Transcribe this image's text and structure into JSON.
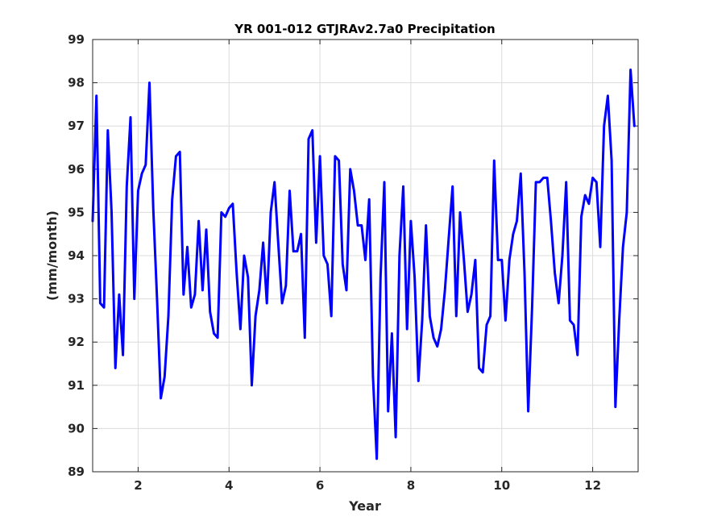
{
  "chart_data": {
    "type": "line",
    "title": "YR 001-012 GTJRAv2.7a0 Precipitation",
    "xlabel": "Year",
    "ylabel": "(mm/month)",
    "xlim": [
      1,
      13
    ],
    "ylim": [
      89,
      99
    ],
    "xticks": [
      2,
      4,
      6,
      8,
      10,
      12
    ],
    "yticks": [
      89,
      90,
      91,
      92,
      93,
      94,
      95,
      96,
      97,
      98,
      99
    ],
    "grid": true,
    "line_color": "#0000ff",
    "series": [
      {
        "x": [
          1.0,
          1.083,
          1.167,
          1.25,
          1.333,
          1.417,
          1.5,
          1.583,
          1.667,
          1.75,
          1.833,
          1.917,
          2.0,
          2.083,
          2.167,
          2.25,
          2.333,
          2.417,
          2.5,
          2.583,
          2.667,
          2.75,
          2.833,
          2.917,
          3.0,
          3.083,
          3.167,
          3.25,
          3.333,
          3.417,
          3.5,
          3.583,
          3.667,
          3.75,
          3.833,
          3.917,
          4.0,
          4.083,
          4.167,
          4.25,
          4.333,
          4.417,
          4.5,
          4.583,
          4.667,
          4.75,
          4.833,
          4.917,
          5.0,
          5.083,
          5.167,
          5.25,
          5.333,
          5.417,
          5.5,
          5.583,
          5.667,
          5.75,
          5.833,
          5.917,
          6.0,
          6.083,
          6.167,
          6.25,
          6.333,
          6.417,
          6.5,
          6.583,
          6.667,
          6.75,
          6.833,
          6.917,
          7.0,
          7.083,
          7.167,
          7.25,
          7.333,
          7.417,
          7.5,
          7.583,
          7.667,
          7.75,
          7.833,
          7.917,
          8.0,
          8.083,
          8.167,
          8.25,
          8.333,
          8.417,
          8.5,
          8.583,
          8.667,
          8.75,
          8.833,
          8.917,
          9.0,
          9.083,
          9.167,
          9.25,
          9.333,
          9.417,
          9.5,
          9.583,
          9.667,
          9.75,
          9.833,
          9.917,
          10.0,
          10.083,
          10.167,
          10.25,
          10.333,
          10.417,
          10.5,
          10.583,
          10.667,
          10.75,
          10.833,
          10.917,
          11.0,
          11.083,
          11.167,
          11.25,
          11.333,
          11.417,
          11.5,
          11.583,
          11.667,
          11.75,
          11.833,
          11.917,
          12.0,
          12.083,
          12.167,
          12.25,
          12.333,
          12.417,
          12.5,
          12.583,
          12.667,
          12.75,
          12.833,
          12.917
        ],
        "values": [
          94.8,
          97.7,
          92.9,
          92.8,
          96.9,
          95.0,
          91.4,
          93.1,
          91.7,
          95.6,
          97.2,
          93.0,
          95.5,
          95.9,
          96.1,
          98.0,
          95.1,
          93.0,
          90.7,
          91.2,
          92.6,
          95.3,
          96.3,
          96.4,
          93.1,
          94.2,
          92.8,
          93.1,
          94.8,
          93.2,
          94.6,
          92.7,
          92.2,
          92.1,
          95.0,
          94.9,
          95.1,
          95.2,
          93.6,
          92.3,
          94.0,
          93.5,
          91.0,
          92.6,
          93.2,
          94.3,
          92.9,
          95.0,
          95.7,
          94.3,
          92.9,
          93.3,
          95.5,
          94.1,
          94.1,
          94.5,
          92.1,
          96.7,
          96.9,
          94.3,
          96.3,
          94.0,
          93.8,
          92.6,
          96.3,
          96.2,
          93.8,
          93.2,
          96.0,
          95.5,
          94.7,
          94.7,
          93.9,
          95.3,
          91.2,
          89.3,
          93.5,
          95.7,
          90.4,
          92.2,
          89.8,
          94.0,
          95.6,
          92.3,
          94.8,
          93.5,
          91.1,
          92.5,
          94.7,
          92.6,
          92.1,
          91.9,
          92.3,
          93.2,
          94.4,
          95.6,
          92.6,
          95.0,
          93.9,
          92.7,
          93.1,
          93.9,
          91.4,
          91.3,
          92.4,
          92.6,
          96.2,
          93.9,
          93.9,
          92.5,
          93.9,
          94.5,
          94.8,
          95.9,
          93.6,
          90.4,
          92.8,
          95.7,
          95.7,
          95.8,
          95.8,
          94.8,
          93.6,
          92.9,
          94.0,
          95.7,
          92.5,
          92.4,
          91.7,
          94.9,
          95.4,
          95.2,
          95.8,
          95.7,
          94.2,
          97.0,
          97.7,
          96.2,
          90.5,
          92.5,
          94.2,
          95.0,
          98.3,
          97.0
        ]
      }
    ]
  }
}
